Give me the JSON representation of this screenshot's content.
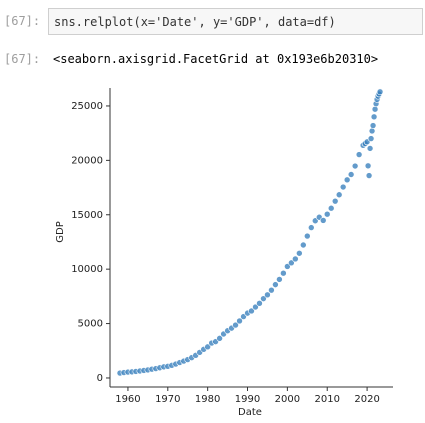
{
  "cells": [
    {
      "prompt": "[67]:",
      "code": "sns.relplot(x='Date', y='GDP', data=df)"
    },
    {
      "prompt": "[67]:",
      "output": "<seaborn.axisgrid.FacetGrid at 0x193e6b20310>"
    }
  ],
  "chart_data": {
    "type": "scatter",
    "xlabel": "Date",
    "ylabel": "GDP",
    "color": "#2f7ab9",
    "x": [
      1958,
      1959,
      1960,
      1961,
      1962,
      1963,
      1964,
      1965,
      1966,
      1967,
      1968,
      1969,
      1970,
      1971,
      1972,
      1973,
      1974,
      1975,
      1976,
      1977,
      1978,
      1979,
      1980,
      1981,
      1982,
      1983,
      1984,
      1985,
      1986,
      1987,
      1988,
      1989,
      1990,
      1991,
      1992,
      1993,
      1994,
      1995,
      1996,
      1997,
      1998,
      1999,
      2000,
      2001,
      2002,
      2003,
      2004,
      2005,
      2006,
      2007,
      2008,
      2009,
      2010,
      2011,
      2012,
      2013,
      2014,
      2015,
      2016,
      2017,
      2018,
      2019,
      2019.5,
      2020,
      2020.25,
      2020.5,
      2020.75,
      2021,
      2021.25,
      2021.5,
      2021.75,
      2022,
      2022.25,
      2022.5,
      2022.75,
      2023,
      2023.25
    ],
    "values": [
      450,
      500,
      540,
      560,
      600,
      640,
      690,
      740,
      810,
      860,
      940,
      1020,
      1070,
      1160,
      1280,
      1420,
      1550,
      1690,
      1870,
      2080,
      2350,
      2630,
      2860,
      3210,
      3340,
      3640,
      4040,
      4340,
      4580,
      4860,
      5240,
      5640,
      5960,
      6160,
      6520,
      6860,
      7290,
      7640,
      8070,
      8580,
      9060,
      9630,
      10250,
      10580,
      10940,
      11460,
      12220,
      13040,
      13820,
      14450,
      14770,
      14480,
      15050,
      15600,
      16250,
      16840,
      17550,
      18210,
      18700,
      19480,
      20530,
      21380,
      21540,
      21700,
      19500,
      18600,
      21100,
      22000,
      22700,
      23200,
      24000,
      24700,
      25200,
      25600,
      25900,
      26100,
      26300
    ],
    "xlim": [
      1955.5,
      2026.5
    ],
    "ylim": [
      -830,
      26650
    ],
    "xticks": [
      1960,
      1970,
      1980,
      1990,
      2000,
      2010,
      2020
    ],
    "yticks": [
      0,
      5000,
      10000,
      15000,
      20000,
      25000
    ]
  }
}
